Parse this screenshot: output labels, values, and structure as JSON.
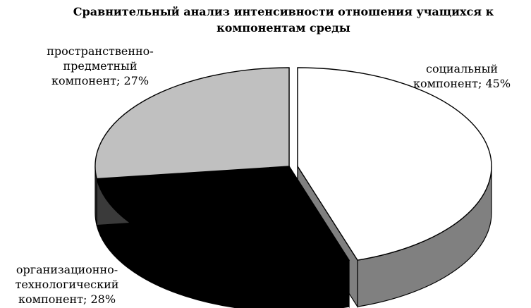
{
  "chart_data": {
    "type": "pie",
    "title_lines": [
      "Сравнительный анализ интенсивности отношения учащихся к",
      "компонентам среды"
    ],
    "slices": [
      {
        "label_lines": [
          "социальный",
          "компонент; 45%"
        ],
        "value": 45,
        "top_color": "#ffffff",
        "side_color": "#808080"
      },
      {
        "label_lines": [
          "организационно-",
          "технологический",
          "компонент; 28%"
        ],
        "value": 28,
        "top_color": "#000000",
        "side_color": "#000000"
      },
      {
        "label_lines": [
          "пространственно-",
          "предметный",
          "компонент; 27%"
        ],
        "value": 27,
        "top_color": "#c0c0c0",
        "side_color": "#3a3a3a"
      }
    ],
    "legend": "none",
    "grid": false
  }
}
